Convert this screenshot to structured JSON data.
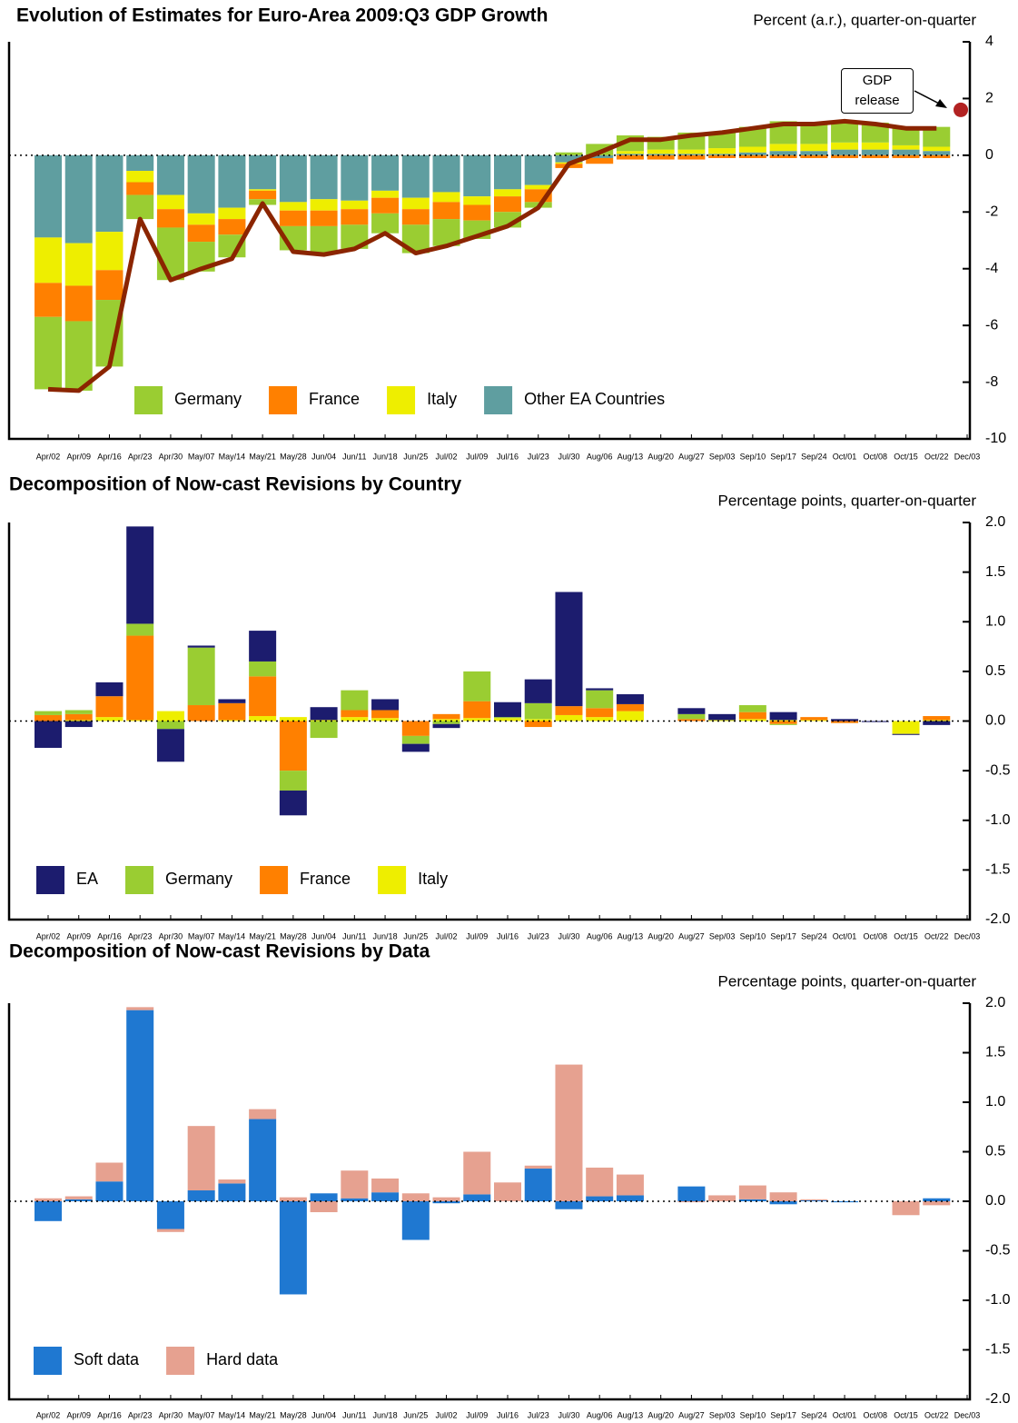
{
  "chart_data": [
    {
      "type": "bar",
      "title": "Evolution of Estimates for Euro-Area 2009:Q3 GDP Growth",
      "ylabel": "Percent (a.r.), quarter-on-quarter",
      "categories": [
        "Apr/02",
        "Apr/09",
        "Apr/16",
        "Apr/23",
        "Apr/30",
        "May/07",
        "May/14",
        "May/21",
        "May/28",
        "Jun/04",
        "Jun/11",
        "Jun/18",
        "Jun/25",
        "Jul/02",
        "Jul/09",
        "Jul/16",
        "Jul/23",
        "Jul/30",
        "Aug/06",
        "Aug/13",
        "Aug/20",
        "Aug/27",
        "Sep/03",
        "Sep/10",
        "Sep/17",
        "Sep/24",
        "Oct/01",
        "Oct/08",
        "Oct/15",
        "Oct/22",
        "Dec/03"
      ],
      "series": [
        {
          "name": "Germany",
          "color": "#9acd32",
          "values": [
            -2.55,
            -2.45,
            -2.35,
            -0.85,
            -1.85,
            -1.05,
            -0.8,
            -0.2,
            -0.85,
            -0.95,
            -0.85,
            -0.7,
            -1.0,
            -0.95,
            -0.65,
            -0.55,
            -0.2,
            0.1,
            0.4,
            0.55,
            0.45,
            0.6,
            0.55,
            0.7,
            0.8,
            0.75,
            0.75,
            0.7,
            0.65,
            0.7,
            null
          ]
        },
        {
          "name": "France",
          "color": "#ff8000",
          "values": [
            -1.2,
            -1.25,
            -1.05,
            -0.45,
            -0.65,
            -0.6,
            -0.55,
            -0.3,
            -0.55,
            -0.55,
            -0.55,
            -0.55,
            -0.55,
            -0.6,
            -0.55,
            -0.55,
            -0.45,
            -0.15,
            -0.2,
            -0.15,
            -0.15,
            -0.15,
            -0.1,
            -0.1,
            -0.1,
            -0.1,
            -0.1,
            -0.1,
            -0.1,
            -0.1,
            null
          ]
        },
        {
          "name": "Italy",
          "color": "#eeee00",
          "values": [
            -1.6,
            -1.5,
            -1.35,
            -0.4,
            -0.5,
            -0.4,
            -0.4,
            -0.05,
            -0.3,
            -0.4,
            -0.3,
            -0.25,
            -0.4,
            -0.35,
            -0.3,
            -0.25,
            -0.15,
            -0.05,
            0,
            0.1,
            0.15,
            0.15,
            0.2,
            0.2,
            0.25,
            0.25,
            0.25,
            0.25,
            0.15,
            0.15,
            null
          ]
        },
        {
          "name": "Other EA Countries",
          "color": "#5f9ea0",
          "values": [
            -2.9,
            -3.1,
            -2.7,
            -0.55,
            -1.4,
            -2.05,
            -1.85,
            -1.2,
            -1.65,
            -1.55,
            -1.6,
            -1.25,
            -1.5,
            -1.3,
            -1.45,
            -1.2,
            -1.05,
            -0.25,
            -0.1,
            0.05,
            0.05,
            0.05,
            0.05,
            0.1,
            0.15,
            0.15,
            0.2,
            0.2,
            0.2,
            0.15,
            null
          ]
        },
        {
          "type": "line",
          "color": "#8b2500",
          "values": [
            -8.25,
            -8.3,
            -7.45,
            -2.25,
            -4.4,
            -4.0,
            -3.65,
            -1.7,
            -3.4,
            -3.5,
            -3.3,
            -2.75,
            -3.45,
            -3.2,
            -2.85,
            -2.5,
            -1.85,
            -0.3,
            0.1,
            0.55,
            0.55,
            0.7,
            0.8,
            0.95,
            1.1,
            1.1,
            1.2,
            1.1,
            0.95,
            0.95,
            null
          ]
        }
      ],
      "stacked": true,
      "stack_order": "reverse",
      "zero_line": true,
      "legend": "lower left",
      "annotation": {
        "text": "GDP release",
        "x": "Dec/03",
        "value": 1.6,
        "color": "#b22222"
      },
      "ylim": [
        -10,
        4
      ],
      "yticks": [
        4,
        2,
        0,
        -2,
        -4,
        -6,
        -8,
        -10
      ]
    },
    {
      "type": "bar",
      "title": "Decomposition of Now-cast Revisions by Country",
      "ylabel": "Percentage points, quarter-on-quarter",
      "categories": [
        "Apr/02",
        "Apr/09",
        "Apr/16",
        "Apr/23",
        "Apr/30",
        "May/07",
        "May/14",
        "May/21",
        "May/28",
        "Jun/04",
        "Jun/11",
        "Jun/18",
        "Jun/25",
        "Jul/02",
        "Jul/09",
        "Jul/16",
        "Jul/23",
        "Jul/30",
        "Aug/06",
        "Aug/13",
        "Aug/20",
        "Aug/27",
        "Sep/03",
        "Sep/10",
        "Sep/17",
        "Sep/24",
        "Oct/01",
        "Oct/08",
        "Oct/15",
        "Oct/22",
        "Dec/03"
      ],
      "series": [
        {
          "name": "EA",
          "color": "#1c1c6e",
          "values": [
            -0.27,
            -0.06,
            0.14,
            0.98,
            -0.33,
            0.02,
            0.04,
            0.31,
            -0.25,
            0.13,
            0,
            0.11,
            -0.08,
            -0.04,
            0,
            0.15,
            0.24,
            1.15,
            0.02,
            0.1,
            0,
            0.06,
            0.06,
            0,
            0.08,
            0,
            0.02,
            -0.01,
            -0.01,
            -0.04,
            null
          ]
        },
        {
          "name": "Germany",
          "color": "#9acd32",
          "values": [
            0.04,
            0.04,
            0,
            0.12,
            -0.08,
            0.58,
            0,
            0.15,
            -0.2,
            -0.17,
            0.2,
            0,
            -0.08,
            -0.03,
            0.3,
            0.01,
            0.16,
            0,
            0.18,
            0,
            0,
            0.05,
            0,
            0.07,
            -0.01,
            0,
            0,
            0,
            0,
            0,
            null
          ]
        },
        {
          "name": "France",
          "color": "#ff8000",
          "values": [
            0.06,
            0.06,
            0.21,
            0.85,
            0,
            0.16,
            0.17,
            0.4,
            -0.5,
            0,
            0.07,
            0.08,
            -0.15,
            0.05,
            0.17,
            0,
            -0.06,
            0.09,
            0.09,
            0.07,
            0,
            0.02,
            0,
            0.07,
            -0.03,
            0.03,
            -0.02,
            0,
            0,
            0.04,
            null
          ]
        },
        {
          "name": "Italy",
          "color": "#eeee00",
          "values": [
            0,
            0.01,
            0.04,
            0.01,
            0.1,
            0,
            0.01,
            0.05,
            0.04,
            0.01,
            0.04,
            0.03,
            0,
            0.02,
            0.03,
            0.03,
            0.02,
            0.06,
            0.04,
            0.1,
            0,
            0,
            0.01,
            0.02,
            0.01,
            0.01,
            0,
            0,
            -0.13,
            0.01,
            null
          ]
        }
      ],
      "stacked": true,
      "stack_order": "reverse",
      "zero_line": true,
      "legend": "lower left",
      "ylim": [
        -2,
        2
      ],
      "yticks": [
        {
          "value": 2,
          "label": "2.0"
        },
        1.5,
        {
          "value": 1,
          "label": "1.0"
        },
        0.5,
        {
          "value": 0,
          "label": "0.0"
        },
        -0.5,
        {
          "value": -1,
          "label": "-1.0"
        },
        -1.5,
        {
          "value": -2,
          "label": "-2.0"
        }
      ]
    },
    {
      "type": "bar",
      "title": "Decomposition of Now-cast Revisions by Data",
      "ylabel": "Percentage points, quarter-on-quarter",
      "categories": [
        "Apr/02",
        "Apr/09",
        "Apr/16",
        "Apr/23",
        "Apr/30",
        "May/07",
        "May/14",
        "May/21",
        "May/28",
        "Jun/04",
        "Jun/11",
        "Jun/18",
        "Jun/25",
        "Jul/02",
        "Jul/09",
        "Jul/16",
        "Jul/23",
        "Jul/30",
        "Aug/06",
        "Aug/13",
        "Aug/20",
        "Aug/27",
        "Sep/03",
        "Sep/10",
        "Sep/17",
        "Sep/24",
        "Oct/01",
        "Oct/08",
        "Oct/15",
        "Oct/22",
        "Dec/03"
      ],
      "series": [
        {
          "name": "Soft data",
          "color": "#1f78d1",
          "values": [
            -0.2,
            0.02,
            0.2,
            1.93,
            -0.28,
            0.11,
            0.18,
            0.83,
            -0.94,
            0.08,
            0.03,
            0.09,
            -0.39,
            -0.02,
            0.07,
            0,
            0.33,
            -0.08,
            0.05,
            0.06,
            0,
            0.15,
            0,
            0.02,
            -0.03,
            0.01,
            -0.01,
            0,
            0,
            0.03,
            null
          ]
        },
        {
          "name": "Hard data",
          "color": "#e6a190",
          "values": [
            0.03,
            0.03,
            0.19,
            0.03,
            -0.03,
            0.65,
            0.04,
            0.1,
            0.04,
            -0.11,
            0.28,
            0.14,
            0.08,
            0.04,
            0.43,
            0.19,
            0.03,
            1.38,
            0.29,
            0.21,
            0,
            -0.01,
            0.06,
            0.14,
            0.09,
            0.01,
            0,
            0,
            -0.14,
            -0.04,
            null
          ]
        }
      ],
      "stacked": true,
      "stack_order": "forward",
      "zero_line": true,
      "legend": "lower left",
      "ylim": [
        -2,
        2
      ],
      "yticks": [
        {
          "value": 2,
          "label": "2.0"
        },
        1.5,
        {
          "value": 1,
          "label": "1.0"
        },
        0.5,
        {
          "value": 0,
          "label": "0.0"
        },
        -0.5,
        {
          "value": -1,
          "label": "-1.0"
        },
        -1.5,
        {
          "value": -2,
          "label": "-2.0"
        }
      ]
    }
  ]
}
